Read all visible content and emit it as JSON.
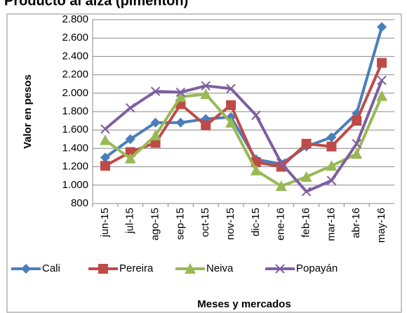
{
  "chart_data": {
    "type": "line",
    "title": "Producto al alza (pimentón)",
    "y_label": "Valor en pesos",
    "x_label": "Meses  y mercados",
    "categories": [
      "jun-15",
      "jul-15",
      "ago-15",
      "sep-15",
      "oct-15",
      "nov-15",
      "dic-15",
      "ene-16",
      "feb-16",
      "mar-16",
      "abr-16",
      "may-16"
    ],
    "series": [
      {
        "name": "Cali",
        "color": "#4a7ebb",
        "marker": "diamond",
        "values": [
          1300,
          1500,
          1680,
          1680,
          1720,
          1740,
          1280,
          1230,
          1420,
          1520,
          1780,
          2720
        ]
      },
      {
        "name": "Pereira",
        "color": "#be4b48",
        "marker": "square",
        "values": [
          1210,
          1360,
          1460,
          1880,
          1650,
          1870,
          1250,
          1200,
          1450,
          1420,
          1700,
          2330
        ]
      },
      {
        "name": "Neiva",
        "color": "#98b954",
        "marker": "triangle",
        "values": [
          1490,
          1290,
          1540,
          1960,
          1990,
          1680,
          1160,
          990,
          1090,
          1210,
          1340,
          1970
        ]
      },
      {
        "name": "Popayán",
        "color": "#7d5fa0",
        "marker": "x",
        "values": [
          1610,
          1840,
          2020,
          2010,
          2080,
          2050,
          1760,
          1240,
          930,
          1050,
          1450,
          2140
        ]
      }
    ],
    "ylim": [
      800,
      2800
    ],
    "yticks": [
      800,
      {
        "value": 1000,
        "label": "1.000"
      },
      {
        "value": 1200,
        "label": "1.200"
      },
      {
        "value": 1400,
        "label": "1.400"
      },
      {
        "value": 1600,
        "label": "1.600"
      },
      {
        "value": 1800,
        "label": "1.800"
      },
      {
        "value": 2000,
        "label": "2.000"
      },
      {
        "value": 2200,
        "label": "2.200"
      },
      {
        "value": 2400,
        "label": "2.400"
      },
      {
        "value": 2600,
        "label": "2.600"
      },
      {
        "value": 2800,
        "label": "2.800"
      }
    ],
    "grid": true,
    "legend": "bottom"
  }
}
